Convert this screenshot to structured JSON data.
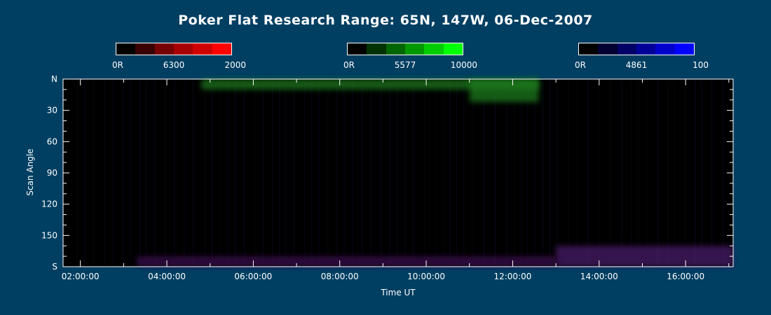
{
  "title": "Poker Flat Research Range: 65N, 147W, 06-Dec-2007",
  "colorbars": [
    {
      "min_label": "0R",
      "mid_label": "6300",
      "max_label": "2000",
      "colors": [
        "#000000",
        "#3a0000",
        "#770000",
        "#a80000",
        "#d00000",
        "#ff0000"
      ]
    },
    {
      "min_label": "0R",
      "mid_label": "5577",
      "max_label": "10000",
      "colors": [
        "#000000",
        "#003300",
        "#006600",
        "#009900",
        "#00cc00",
        "#00ff00"
      ]
    },
    {
      "min_label": "0R",
      "mid_label": "4861",
      "max_label": "100",
      "colors": [
        "#000000",
        "#000033",
        "#000066",
        "#000099",
        "#0000cc",
        "#0000ff"
      ]
    }
  ],
  "chart_data": {
    "type": "heatmap",
    "title": "Poker Flat Research Range: 65N, 147W, 06-Dec-2007",
    "xlabel": "Time UT",
    "ylabel": "Scan Angle",
    "xlim_hours": [
      1.6,
      17.1
    ],
    "ylim_deg": [
      0,
      180
    ],
    "x_tick_labels": [
      "02:00:00",
      "04:00:00",
      "06:00:00",
      "08:00:00",
      "10:00:00",
      "12:00:00",
      "14:00:00",
      "16:00:00"
    ],
    "x_tick_hours": [
      2,
      4,
      6,
      8,
      10,
      12,
      14,
      16
    ],
    "y_tick_labels": [
      "N",
      "30",
      "60",
      "90",
      "120",
      "150",
      "S"
    ],
    "y_tick_values": [
      0,
      30,
      60,
      90,
      120,
      150,
      180
    ],
    "channels": [
      "6300",
      "5577",
      "4861"
    ],
    "features": [
      {
        "channel": "5577",
        "color": "#1f7a1f",
        "time_start": 4.8,
        "time_end": 12.6,
        "angle_start": 0,
        "angle_end": 10
      },
      {
        "channel": "5577",
        "color": "#1f7a1f",
        "time_start": 11.0,
        "time_end": 12.6,
        "angle_start": 0,
        "angle_end": 22
      },
      {
        "channel": "4861",
        "color": "#4a1a6a",
        "time_start": 13.0,
        "time_end": 17.1,
        "angle_start": 160,
        "angle_end": 180
      },
      {
        "channel": "4861",
        "color": "#3a1050",
        "time_start": 3.3,
        "time_end": 13.0,
        "angle_start": 170,
        "angle_end": 180
      }
    ]
  }
}
